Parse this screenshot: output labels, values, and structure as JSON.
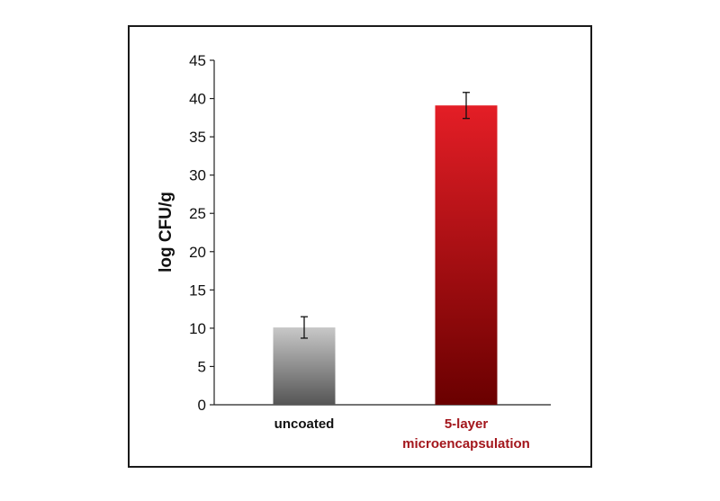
{
  "chart_data": {
    "type": "bar",
    "title": "",
    "xlabel": "",
    "ylabel": "log CFU/g",
    "ylim": [
      0,
      45
    ],
    "yticks": [
      0,
      5,
      10,
      15,
      20,
      25,
      30,
      35,
      40,
      45
    ],
    "grid": false,
    "categories": [
      {
        "lines": [
          "uncoated"
        ],
        "color": "#111111"
      },
      {
        "lines": [
          "5-layer",
          "microencapsulation"
        ],
        "color": "#a3161c"
      }
    ],
    "values": [
      10.1,
      39.1
    ],
    "errors": [
      1.4,
      1.7
    ],
    "bar_gradients": [
      {
        "top": "#c8c8c8",
        "bottom": "#555555"
      },
      {
        "top": "#e41e26",
        "bottom": "#6a0000"
      }
    ]
  }
}
